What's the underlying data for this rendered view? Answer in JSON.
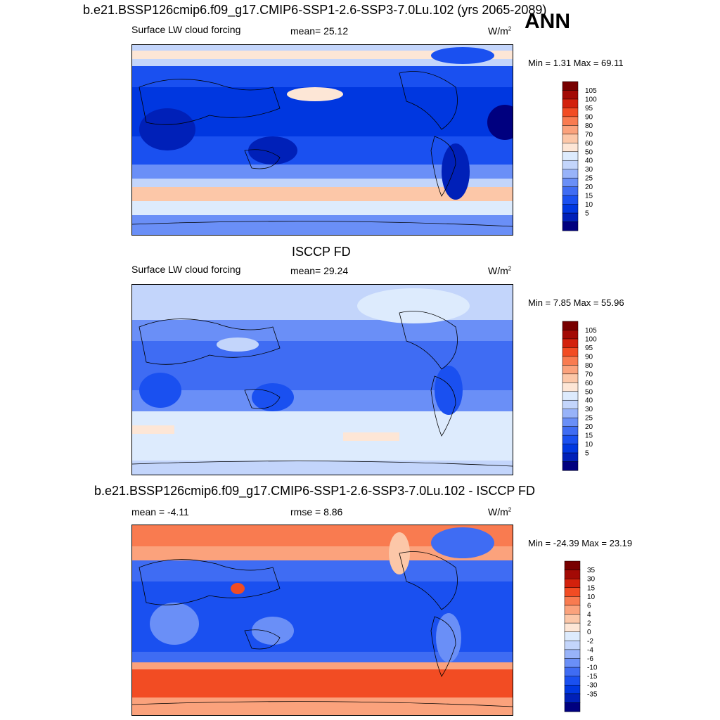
{
  "colors": {
    "model_scale": [
      "#00007f",
      "#0020b8",
      "#0037e0",
      "#1a50f0",
      "#3f6cf3",
      "#6a8ff7",
      "#98b3f9",
      "#c3d5fb",
      "#ddebfd",
      "#fde6d6",
      "#fcc7a8",
      "#fba27c",
      "#f97b50",
      "#f24c23",
      "#d3210c",
      "#a30a05",
      "#780000"
    ],
    "diff_scale": [
      "#00007f",
      "#0020b8",
      "#0037e0",
      "#1a50f0",
      "#3f6cf3",
      "#6a8ff7",
      "#98b3f9",
      "#c3d5fb",
      "#ddebfd",
      "#fde6d6",
      "#fcc7a8",
      "#fba27c",
      "#f97b50",
      "#f24c23",
      "#d3210c",
      "#a30a05",
      "#780000"
    ]
  },
  "header": {
    "annotation": "ANN"
  },
  "panels": [
    {
      "title": "b.e21.BSSP126cmip6.f09_g17.CMIP6-SSP1-2.6-SSP3-7.0Lu.102 (yrs 2065-2089)",
      "left_label": "Surface LW cloud forcing",
      "center_label": "mean=  25.12",
      "units_base": "W/m",
      "units_sup": "2",
      "minmax": "Min =   1.31 Max =  69.11",
      "colorbar_labels": [
        "105",
        "100",
        "95",
        "90",
        "80",
        "70",
        "60",
        "50",
        "40",
        "30",
        "25",
        "20",
        "15",
        "10",
        "5"
      ],
      "map_icon": "world-map-filled-contours"
    },
    {
      "title": "ISCCP FD",
      "left_label": "Surface LW cloud forcing",
      "center_label": "mean=  29.24",
      "units_base": "W/m",
      "units_sup": "2",
      "minmax": "Min =   7.85 Max =  55.96",
      "colorbar_labels": [
        "105",
        "100",
        "95",
        "90",
        "80",
        "70",
        "60",
        "50",
        "40",
        "30",
        "25",
        "20",
        "15",
        "10",
        "5"
      ],
      "map_icon": "world-map-filled-contours"
    },
    {
      "title": "b.e21.BSSP126cmip6.f09_g17.CMIP6-SSP1-2.6-SSP3-7.0Lu.102 - ISCCP FD",
      "left_label": "mean =  -4.11",
      "center_label": "rmse =   8.86",
      "units_base": "W/m",
      "units_sup": "2",
      "minmax": "Min = -24.39 Max =  23.19",
      "colorbar_labels": [
        "35",
        "30",
        "15",
        "10",
        "6",
        "4",
        "2",
        "0",
        "-2",
        "-4",
        "-6",
        "-10",
        "-15",
        "-30",
        "-35"
      ],
      "map_icon": "world-map-filled-contours"
    }
  ]
}
